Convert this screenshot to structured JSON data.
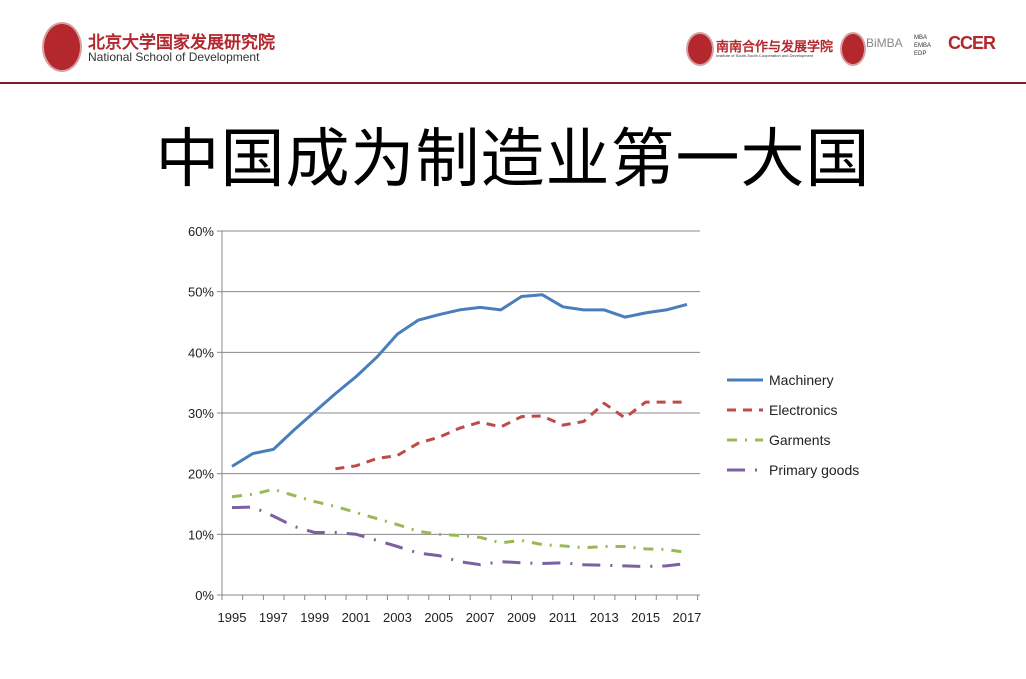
{
  "header": {
    "school_cn": "北京大学国家发展研究院",
    "school_en": "National School of Development",
    "ssc_cn": "南南合作与发展学院",
    "ssc_en": "Institute of South-South Cooperation and Development",
    "bimba": "BiMBA",
    "bimba_sub": "MBA EMBA EDP",
    "ccer": "CCER"
  },
  "title": "中国成为制造业第一大国",
  "chart_data": {
    "type": "line",
    "title": "中国成为制造业第一大国",
    "xlabel": "",
    "ylabel": "",
    "ylim": [
      0,
      0.6
    ],
    "yticks": [
      "0%",
      "10%",
      "20%",
      "30%",
      "40%",
      "50%",
      "60%"
    ],
    "xticks": [
      "1995",
      "1997",
      "1999",
      "2001",
      "2003",
      "2005",
      "2007",
      "2009",
      "2011",
      "2013",
      "2015",
      "2017"
    ],
    "x": [
      1995,
      1996,
      1997,
      1998,
      1999,
      2000,
      2001,
      2002,
      2003,
      2004,
      2005,
      2006,
      2007,
      2008,
      2009,
      2010,
      2011,
      2012,
      2013,
      2014,
      2015,
      2016,
      2017
    ],
    "grid": true,
    "legend": "right",
    "series": [
      {
        "name": "Machinery",
        "color": "#4a7ebb",
        "dash": "",
        "values": [
          0.212,
          0.233,
          0.24,
          0.272,
          0.302,
          0.332,
          0.36,
          0.392,
          0.43,
          0.453,
          0.462,
          0.47,
          0.474,
          0.47,
          0.492,
          0.495,
          0.475,
          0.47,
          0.47,
          0.458,
          0.465,
          0.47,
          0.479
        ]
      },
      {
        "name": "Electronics",
        "color": "#be4b48",
        "dash": "9,7",
        "values": [
          null,
          null,
          null,
          null,
          null,
          0.208,
          0.213,
          0.225,
          0.23,
          0.25,
          0.26,
          0.275,
          0.285,
          0.277,
          0.294,
          0.295,
          0.28,
          0.286,
          0.316,
          0.292,
          0.318,
          0.318,
          0.318
        ]
      },
      {
        "name": "Garments",
        "color": "#98b954",
        "dash": "10,8,2,8",
        "values": [
          0.162,
          0.166,
          0.174,
          0.164,
          0.154,
          0.146,
          0.136,
          0.126,
          0.116,
          0.105,
          0.1,
          0.098,
          0.095,
          0.086,
          0.09,
          0.083,
          0.081,
          0.078,
          0.08,
          0.08,
          0.076,
          0.075,
          0.07
        ]
      },
      {
        "name": "Primary goods",
        "color": "#7d60a0",
        "dash": "18,10,2,10",
        "values": [
          0.144,
          0.145,
          0.13,
          0.113,
          0.103,
          0.103,
          0.1,
          0.09,
          0.08,
          0.069,
          0.065,
          0.055,
          0.05,
          0.055,
          0.053,
          0.052,
          0.053,
          0.05,
          0.049,
          0.048,
          0.047,
          0.048,
          0.052
        ]
      }
    ]
  }
}
